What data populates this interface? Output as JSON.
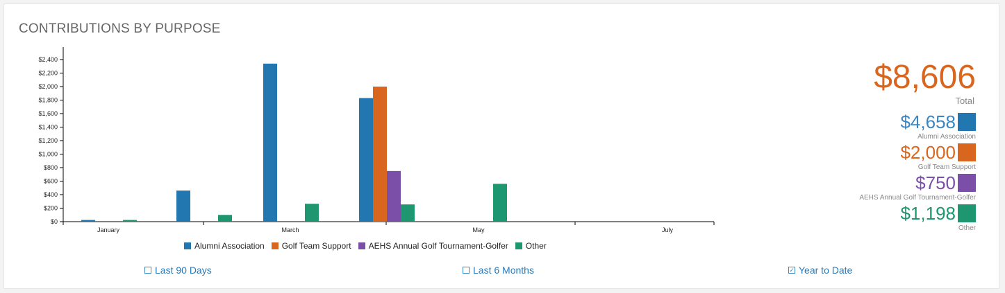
{
  "header": {
    "title": "CONTRIBUTIONS BY PURPOSE"
  },
  "chart_data": {
    "type": "bar",
    "y_ticks": [
      "$0",
      "$200",
      "$400",
      "$600",
      "$800",
      "$1,000",
      "$1,200",
      "$1,400",
      "$1,600",
      "$1,800",
      "$2,000",
      "$2,200",
      "$2,400"
    ],
    "ylim": [
      0,
      2600
    ],
    "x_tick_labels": [
      "January",
      "March",
      "May",
      "July"
    ],
    "grid": false,
    "legend_position": "bottom",
    "series": [
      {
        "name": "Alumni Association",
        "color": "#2277b0"
      },
      {
        "name": "Golf Team Support",
        "color": "#d9661f"
      },
      {
        "name": "AEHS Annual Golf Tournament-Golfer",
        "color": "#7b4fa8"
      },
      {
        "name": "Other",
        "color": "#1e9670"
      }
    ],
    "bars": [
      {
        "period": "January (early)",
        "series": "Alumni Association",
        "value": 25
      },
      {
        "period": "January (early)",
        "series": "Other",
        "value": 25
      },
      {
        "period": "February",
        "series": "Alumni Association",
        "value": 460
      },
      {
        "period": "February",
        "series": "Other",
        "value": 100
      },
      {
        "period": "March",
        "series": "Alumni Association",
        "value": 2340
      },
      {
        "period": "March",
        "series": "Other",
        "value": 265
      },
      {
        "period": "April",
        "series": "Alumni Association",
        "value": 1830
      },
      {
        "period": "April",
        "series": "Golf Team Support",
        "value": 2000
      },
      {
        "period": "April",
        "series": "AEHS Annual Golf Tournament-Golfer",
        "value": 750
      },
      {
        "period": "April",
        "series": "Other",
        "value": 255
      },
      {
        "period": "May",
        "series": "Other",
        "value": 560
      }
    ]
  },
  "summary": {
    "total_value": "$8,606",
    "total_label": "Total",
    "items": [
      {
        "value": "$4,658",
        "label": "Alumni Association",
        "color": "#2277b0"
      },
      {
        "value": "$2,000",
        "label": "Golf Team Support",
        "color": "#d9661f"
      },
      {
        "value": "$750",
        "label": "AEHS Annual Golf Tournament-Golfer",
        "color": "#7b4fa8"
      },
      {
        "value": "$1,198",
        "label": "Other",
        "color": "#1e9670"
      }
    ]
  },
  "ranges": {
    "options": [
      {
        "label": "Last 90 Days",
        "checked": false
      },
      {
        "label": "Last 6 Months",
        "checked": false
      },
      {
        "label": "Year to Date",
        "checked": true
      }
    ]
  }
}
